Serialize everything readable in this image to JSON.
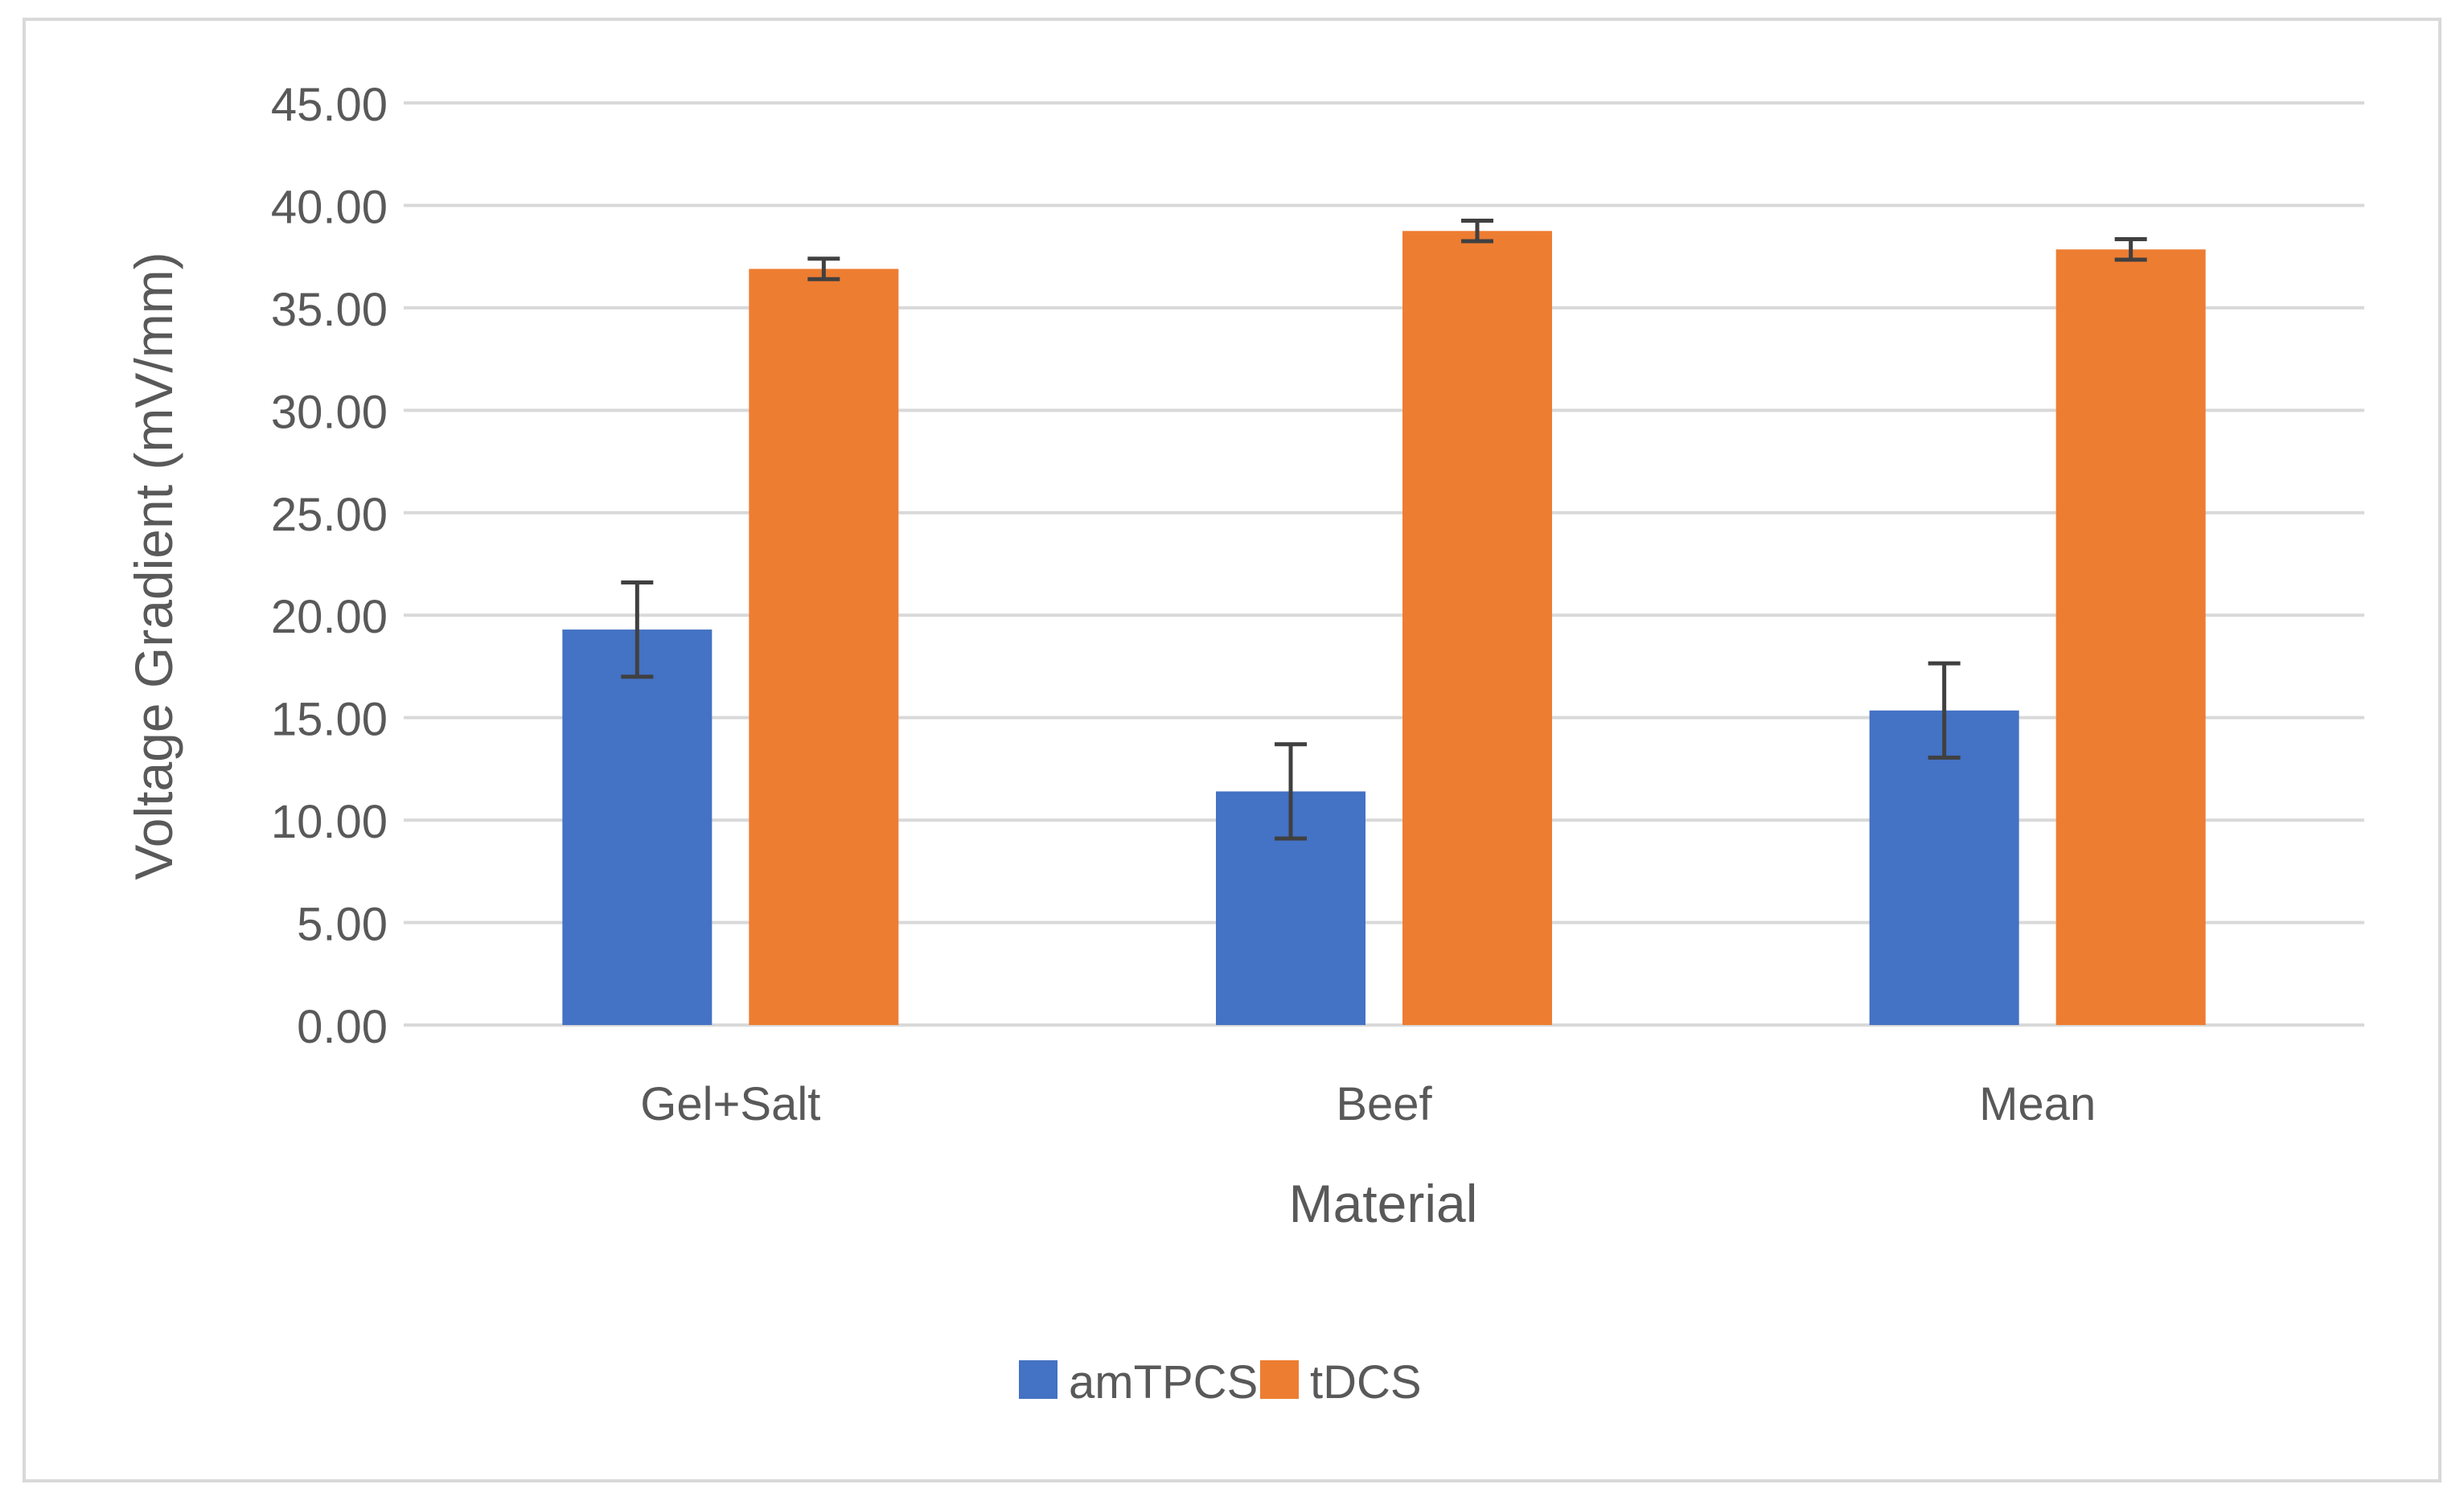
{
  "chart_data": {
    "type": "bar",
    "title": "",
    "xlabel": "Material",
    "ylabel": "Voltage Gradient (mV/mm)",
    "categories": [
      "Gel+Salt",
      "Beef",
      "Mean"
    ],
    "series": [
      {
        "name": "amTPCS",
        "color": "#4472C4",
        "values": [
          19.3,
          11.4,
          15.35
        ],
        "error": [
          2.3,
          2.3,
          2.3
        ]
      },
      {
        "name": "tDCS",
        "color": "#ED7D31",
        "values": [
          36.9,
          38.75,
          37.85
        ],
        "error": [
          0.5,
          0.5,
          0.5
        ]
      }
    ],
    "ylim": [
      0,
      45
    ],
    "ytick_step": 5,
    "ytick_labels": [
      "0.00",
      "5.00",
      "10.00",
      "15.00",
      "20.00",
      "25.00",
      "30.00",
      "35.00",
      "40.00",
      "45.00"
    ],
    "grid": true,
    "legend_position": "bottom",
    "error_bar_color": "#404040",
    "grid_color": "#D9D9D9"
  }
}
